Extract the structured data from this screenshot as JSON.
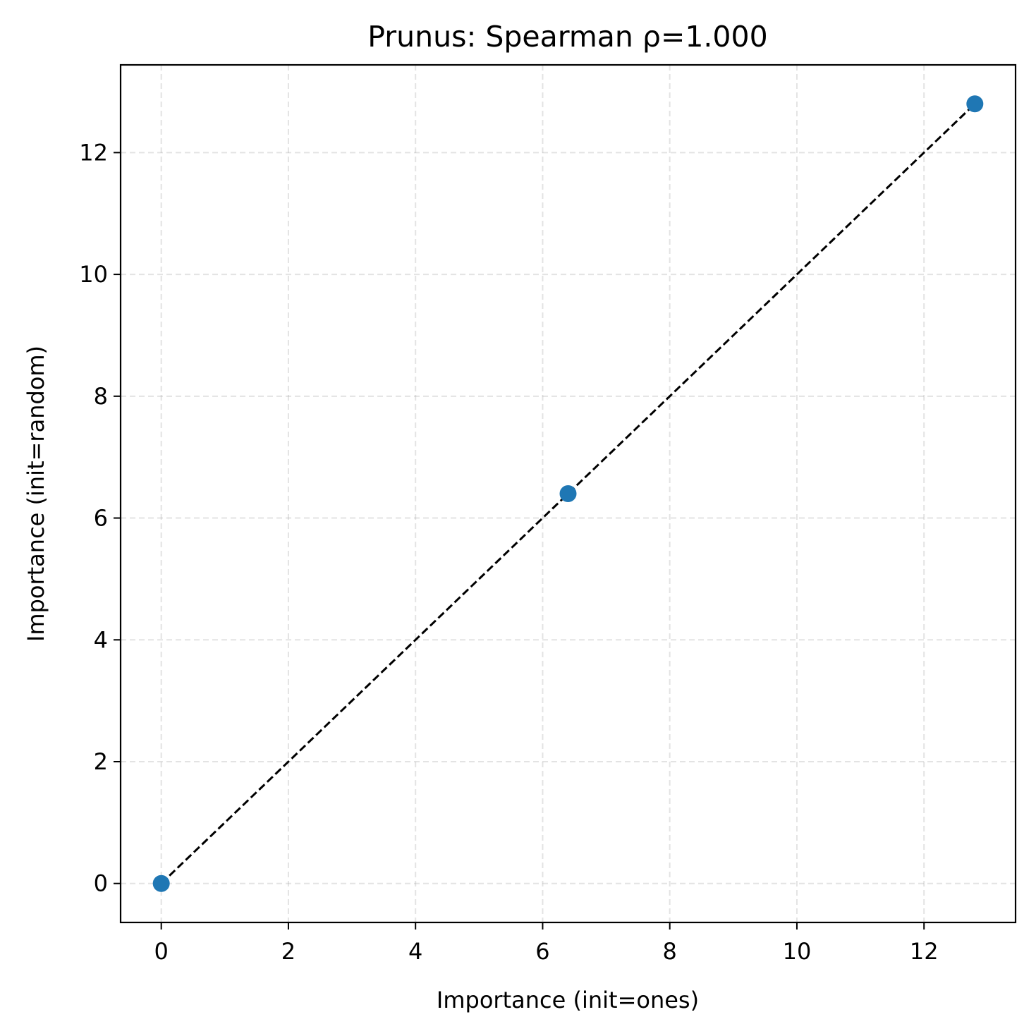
{
  "chart_data": {
    "type": "scatter",
    "title": "Prunus: Spearman ρ=1.000",
    "xlabel": "Importance (init=ones)",
    "ylabel": "Importance (init=random)",
    "xlim": [
      -0.64,
      13.44
    ],
    "ylim": [
      -0.64,
      13.44
    ],
    "xticks": [
      0,
      2,
      4,
      6,
      8,
      10,
      12
    ],
    "yticks": [
      0,
      2,
      4,
      6,
      8,
      10,
      12
    ],
    "grid": true,
    "points": [
      {
        "x": 0,
        "y": 0
      },
      {
        "x": 6.4,
        "y": 6.4
      },
      {
        "x": 12.8,
        "y": 12.8
      }
    ],
    "reference_line": {
      "x": [
        0,
        12.8
      ],
      "y": [
        0,
        12.8
      ]
    },
    "marker_color": "#1f77b4",
    "line_color": "#000000"
  }
}
